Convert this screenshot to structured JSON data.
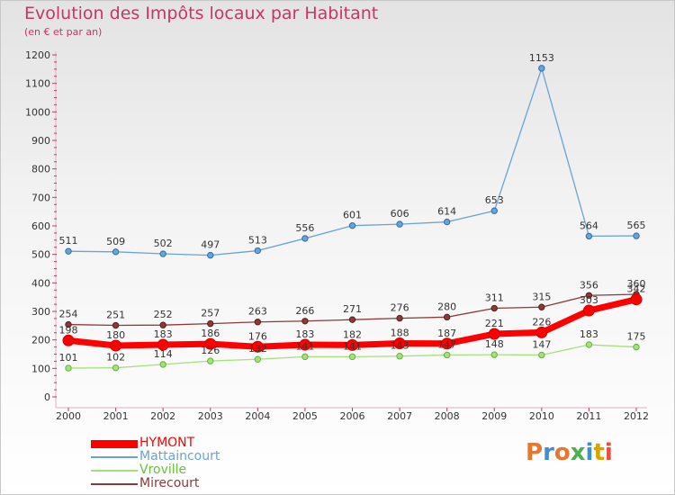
{
  "header": {
    "title": "Evolution des Impôts locaux par Habitant",
    "subtitle": "(en € et par an)"
  },
  "logo": {
    "text": "Proxiti",
    "colors": [
      "#e8762d",
      "#3f8fd0",
      "#e8762d",
      "#4caf50",
      "#3f8fd0",
      "#d9a400",
      "#e84d3d"
    ]
  },
  "chart_data": {
    "type": "line",
    "title": "Evolution des Impôts locaux par Habitant",
    "subtitle": "(en € et par an)",
    "x": [
      "2000",
      "2001",
      "2002",
      "2003",
      "2004",
      "2005",
      "2006",
      "2007",
      "2008",
      "2009",
      "2010",
      "2011",
      "2012"
    ],
    "ylim": [
      0,
      1200
    ],
    "yticks": [
      0,
      100,
      200,
      300,
      400,
      500,
      600,
      700,
      800,
      900,
      1000,
      1100,
      1200
    ],
    "grid": false,
    "legend": "bottom-left",
    "series": [
      {
        "name": "HYMONT",
        "color": "#ff0000",
        "values": [
          198,
          180,
          183,
          186,
          176,
          183,
          182,
          188,
          187,
          221,
          226,
          303,
          342
        ]
      },
      {
        "name": "Mattaincourt",
        "color": "#6aa3d4",
        "values": [
          511,
          509,
          502,
          497,
          513,
          556,
          601,
          606,
          614,
          653,
          1153,
          564,
          565
        ]
      },
      {
        "name": "Vroville",
        "color": "#a6e07a",
        "values": [
          101,
          102,
          114,
          126,
          132,
          141,
          141,
          143,
          147,
          148,
          147,
          183,
          175
        ]
      },
      {
        "name": "Mirecourt",
        "color": "#8b3a3a",
        "values": [
          254,
          251,
          252,
          257,
          263,
          266,
          271,
          276,
          280,
          311,
          315,
          356,
          360
        ]
      }
    ]
  }
}
